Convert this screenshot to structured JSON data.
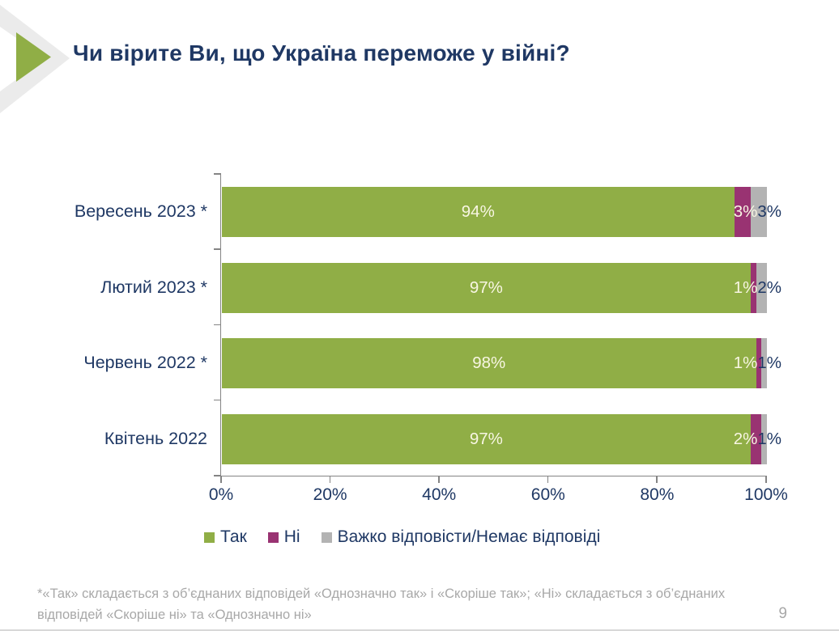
{
  "header": {
    "title": "Чи вірите Ви, що Україна переможе у війні?"
  },
  "chart_data": {
    "type": "bar",
    "orientation": "horizontal",
    "stacked": true,
    "title": "Чи вірите Ви, що Україна переможе у війні?",
    "categories": [
      "Вересень 2023 *",
      "Лютий 2023 *",
      "Червень 2022 *",
      "Квітень 2022"
    ],
    "series": [
      {
        "name": "Так",
        "color": "#90AE46",
        "label_color": "#F8F6E3",
        "values": [
          94,
          97,
          98,
          97
        ]
      },
      {
        "name": "Ні",
        "color": "#993372",
        "label_color": "#F8F6E3",
        "values": [
          3,
          1,
          1,
          2
        ]
      },
      {
        "name": "Важко відповісти/Немає відповіді",
        "color": "#B3B3B3",
        "label_color": "#1F3864",
        "values": [
          3,
          2,
          1,
          1
        ]
      }
    ],
    "xlim": [
      0,
      100
    ],
    "x_ticks": [
      "0%",
      "20%",
      "40%",
      "60%",
      "80%",
      "100%"
    ],
    "value_suffix": "%",
    "legend_position": "bottom",
    "grid": false
  },
  "colors": {
    "accent_green": "#90AE46",
    "accent_purple": "#993372",
    "neutral_gray": "#B3B3B3",
    "text_navy": "#1F3864",
    "note_gray": "#A8A8A8"
  },
  "footer": {
    "note_line1": "*«Так» складається з об’єднаних відповідей «Однозначно так» і «Скоріше так»; «Ні» складається з об’єднаних",
    "note_line2": "відповідей «Скоріше ні» та «Однозначно ні»",
    "page_number": "9"
  }
}
